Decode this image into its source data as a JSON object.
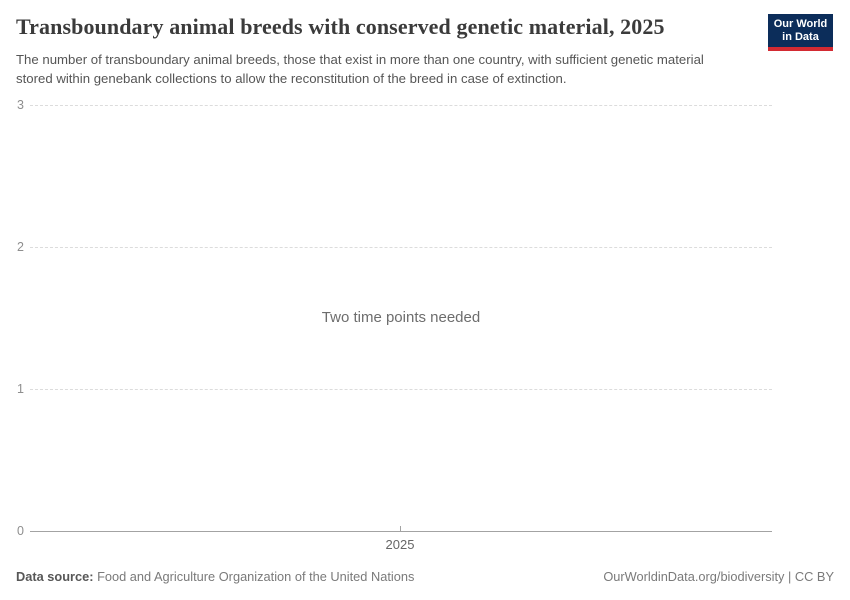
{
  "header": {
    "title": "Transboundary animal breeds with conserved genetic material, 2025",
    "subtitle": "The number of transboundary animal breeds, those that exist in more than one country, with sufficient genetic material stored within genebank collections to allow the reconstitution of the breed in case of extinction.",
    "logo": {
      "line1": "Our World",
      "line2": "in Data"
    }
  },
  "chart_data": {
    "type": "line",
    "title": "Transboundary animal breeds with conserved genetic material, 2025",
    "series": [],
    "empty_message": "Two time points needed",
    "x": [
      2025
    ],
    "xticks": [
      "2025"
    ],
    "yticks": [
      "0",
      "1",
      "2",
      "3"
    ],
    "ylim": [
      0,
      3
    ],
    "xlabel": "",
    "ylabel": "",
    "grid": "horizontal-dashed",
    "legend": "none"
  },
  "footer": {
    "datasource_label": "Data source:",
    "datasource_value": " Food and Agriculture Organization of the United Nations",
    "attribution": "OurWorldinData.org/biodiversity | CC BY"
  },
  "colors": {
    "background": "#ffffff",
    "title_text": "#3b3b3b",
    "subtitle_text": "#565656",
    "axis_label": "#8e8e8e",
    "gridline": "#dcdcdc",
    "axis_line": "#a3a3a3",
    "logo_navy": "#0c2d5a",
    "logo_red": "#d32a32"
  }
}
